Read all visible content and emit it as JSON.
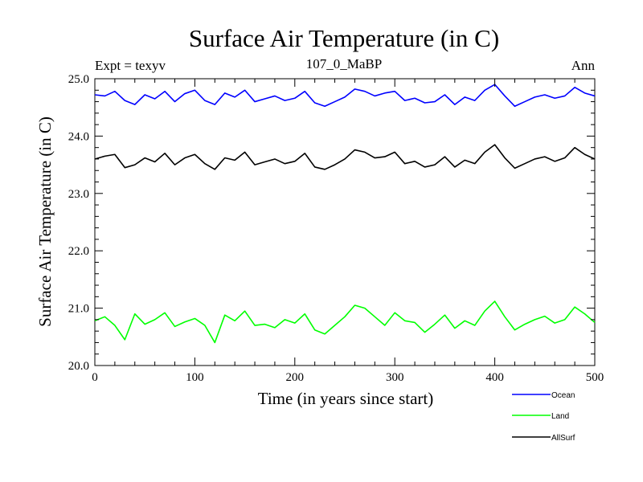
{
  "chart_data": {
    "type": "line",
    "title": "Surface Air Temperature (in C)",
    "subtitle_left": "Expt = texyv",
    "subtitle_center": "107_0_MaBP",
    "subtitle_right": "Ann",
    "xlabel": "Time (in years since start)",
    "ylabel": "Surface Air Temperature (in C)",
    "xlim": [
      0,
      500
    ],
    "ylim": [
      20.0,
      25.0
    ],
    "x_ticks": [
      0,
      100,
      200,
      300,
      400,
      500
    ],
    "x_tick_labels": [
      "0",
      "100",
      "200",
      "300",
      "400",
      "500"
    ],
    "y_ticks": [
      20.0,
      21.0,
      22.0,
      23.0,
      24.0,
      25.0
    ],
    "y_tick_labels": [
      "20.0",
      "21.0",
      "22.0",
      "23.0",
      "24.0",
      "25.0"
    ],
    "grid": false,
    "legend_position": "bottom-right",
    "series": [
      {
        "name": "Ocean",
        "color": "#0000ff",
        "x": [
          0,
          10,
          20,
          30,
          40,
          50,
          60,
          70,
          80,
          90,
          100,
          110,
          120,
          130,
          140,
          150,
          160,
          170,
          180,
          190,
          200,
          210,
          220,
          230,
          240,
          250,
          260,
          270,
          280,
          290,
          300,
          310,
          320,
          330,
          340,
          350,
          360,
          370,
          380,
          390,
          400,
          410,
          420,
          430,
          440,
          450,
          460,
          470,
          480,
          490,
          500
        ],
        "values": [
          24.72,
          24.7,
          24.78,
          24.62,
          24.55,
          24.72,
          24.65,
          24.78,
          24.6,
          24.74,
          24.8,
          24.62,
          24.55,
          24.75,
          24.68,
          24.8,
          24.6,
          24.65,
          24.7,
          24.62,
          24.66,
          24.78,
          24.58,
          24.52,
          24.6,
          24.68,
          24.82,
          24.78,
          24.7,
          24.75,
          24.78,
          24.62,
          24.66,
          24.58,
          24.6,
          24.72,
          24.55,
          24.68,
          24.62,
          24.8,
          24.9,
          24.7,
          24.52,
          24.6,
          24.68,
          24.72,
          24.66,
          24.7,
          24.85,
          24.75,
          24.7
        ]
      },
      {
        "name": "Land",
        "color": "#00ff00",
        "x": [
          0,
          10,
          20,
          30,
          40,
          50,
          60,
          70,
          80,
          90,
          100,
          110,
          120,
          130,
          140,
          150,
          160,
          170,
          180,
          190,
          200,
          210,
          220,
          230,
          240,
          250,
          260,
          270,
          280,
          290,
          300,
          310,
          320,
          330,
          340,
          350,
          360,
          370,
          380,
          390,
          400,
          410,
          420,
          430,
          440,
          450,
          460,
          470,
          480,
          490,
          500
        ],
        "values": [
          20.78,
          20.85,
          20.7,
          20.45,
          20.9,
          20.72,
          20.8,
          20.92,
          20.68,
          20.76,
          20.82,
          20.7,
          20.4,
          20.88,
          20.78,
          20.95,
          20.7,
          20.72,
          20.66,
          20.8,
          20.74,
          20.9,
          20.62,
          20.55,
          20.7,
          20.85,
          21.05,
          21.0,
          20.85,
          20.7,
          20.92,
          20.78,
          20.75,
          20.58,
          20.72,
          20.88,
          20.65,
          20.78,
          20.7,
          20.95,
          21.12,
          20.85,
          20.62,
          20.72,
          20.8,
          20.86,
          20.74,
          20.8,
          21.02,
          20.9,
          20.75
        ]
      },
      {
        "name": "AllSurf",
        "color": "#000000",
        "x": [
          0,
          10,
          20,
          30,
          40,
          50,
          60,
          70,
          80,
          90,
          100,
          110,
          120,
          130,
          140,
          150,
          160,
          170,
          180,
          190,
          200,
          210,
          220,
          230,
          240,
          250,
          260,
          270,
          280,
          290,
          300,
          310,
          320,
          330,
          340,
          350,
          360,
          370,
          380,
          390,
          400,
          410,
          420,
          430,
          440,
          450,
          460,
          470,
          480,
          490,
          500
        ],
        "values": [
          23.6,
          23.65,
          23.68,
          23.45,
          23.5,
          23.62,
          23.55,
          23.7,
          23.5,
          23.62,
          23.68,
          23.52,
          23.42,
          23.62,
          23.58,
          23.72,
          23.5,
          23.55,
          23.6,
          23.52,
          23.56,
          23.7,
          23.46,
          23.42,
          23.5,
          23.6,
          23.76,
          23.72,
          23.62,
          23.64,
          23.72,
          23.52,
          23.56,
          23.46,
          23.5,
          23.64,
          23.46,
          23.58,
          23.52,
          23.72,
          23.85,
          23.62,
          23.44,
          23.52,
          23.6,
          23.64,
          23.56,
          23.62,
          23.8,
          23.68,
          23.6
        ]
      }
    ]
  }
}
